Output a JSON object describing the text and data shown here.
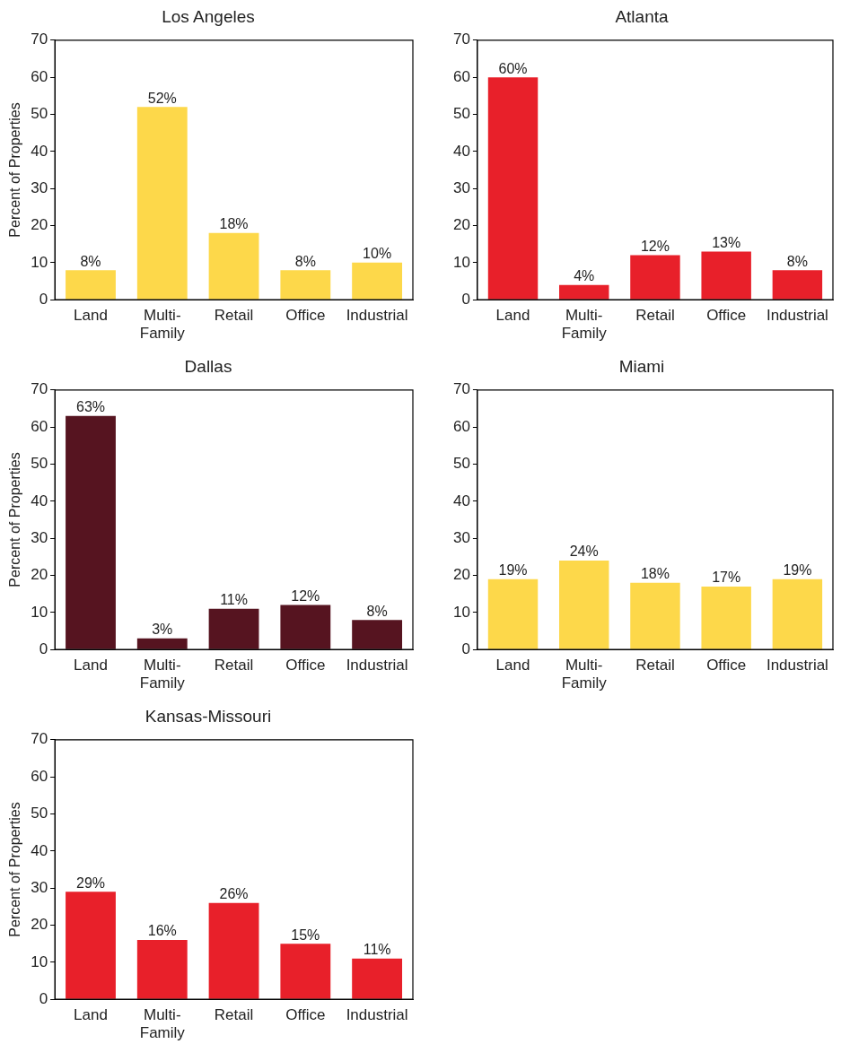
{
  "chart_data": [
    {
      "type": "bar",
      "title": "Los Angeles",
      "ylabel": "Percent of Properties",
      "categories": [
        "Land",
        "Multi-Family",
        "Retail",
        "Office",
        "Industrial"
      ],
      "values": [
        8,
        52,
        18,
        8,
        10
      ],
      "value_labels": [
        "8%",
        "52%",
        "18%",
        "8%",
        "10%"
      ],
      "color": "#fdd84a",
      "ylim": [
        0,
        70
      ],
      "yticks": [
        0,
        10,
        20,
        30,
        40,
        50,
        60,
        70
      ],
      "grid": false,
      "legend": false
    },
    {
      "type": "bar",
      "title": "Atlanta",
      "categories": [
        "Land",
        "Multi-Family",
        "Retail",
        "Office",
        "Industrial"
      ],
      "values": [
        60,
        4,
        12,
        13,
        8
      ],
      "value_labels": [
        "60%",
        "4%",
        "12%",
        "13%",
        "8%"
      ],
      "color": "#e8202a",
      "ylim": [
        0,
        70
      ],
      "yticks": [
        0,
        10,
        20,
        30,
        40,
        50,
        60,
        70
      ],
      "grid": false,
      "legend": false
    },
    {
      "type": "bar",
      "title": "Dallas",
      "ylabel": "Percent of Properties",
      "categories": [
        "Land",
        "Multi-Family",
        "Retail",
        "Office",
        "Industrial"
      ],
      "values": [
        63,
        3,
        11,
        12,
        8
      ],
      "value_labels": [
        "63%",
        "3%",
        "11%",
        "12%",
        "8%"
      ],
      "color": "#561420",
      "ylim": [
        0,
        70
      ],
      "yticks": [
        0,
        10,
        20,
        30,
        40,
        50,
        60,
        70
      ],
      "grid": false,
      "legend": false
    },
    {
      "type": "bar",
      "title": "Miami",
      "categories": [
        "Land",
        "Multi-Family",
        "Retail",
        "Office",
        "Industrial"
      ],
      "values": [
        19,
        24,
        18,
        17,
        19
      ],
      "value_labels": [
        "19%",
        "24%",
        "18%",
        "17%",
        "19%"
      ],
      "color": "#fdd84a",
      "ylim": [
        0,
        70
      ],
      "yticks": [
        0,
        10,
        20,
        30,
        40,
        50,
        60,
        70
      ],
      "grid": false,
      "legend": false
    },
    {
      "type": "bar",
      "title": "Kansas-Missouri",
      "ylabel": "Percent of Properties",
      "categories": [
        "Land",
        "Multi-Family",
        "Retail",
        "Office",
        "Industrial"
      ],
      "values": [
        29,
        16,
        26,
        15,
        11
      ],
      "value_labels": [
        "29%",
        "16%",
        "26%",
        "15%",
        "11%"
      ],
      "color": "#e8202a",
      "ylim": [
        0,
        70
      ],
      "yticks": [
        0,
        10,
        20,
        30,
        40,
        50,
        60,
        70
      ],
      "grid": false,
      "legend": false
    }
  ]
}
